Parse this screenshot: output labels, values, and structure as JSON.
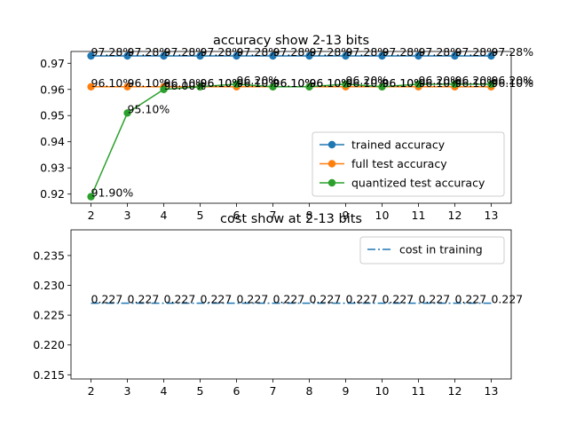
{
  "chart_data": [
    {
      "type": "line",
      "title": "accuracy show 2-13 bits",
      "xlabel": "",
      "ylabel": "",
      "x": [
        2,
        3,
        4,
        5,
        6,
        7,
        8,
        9,
        10,
        11,
        12,
        13
      ],
      "xticks": [
        "2",
        "3",
        "4",
        "5",
        "6",
        "7",
        "8",
        "9",
        "10",
        "11",
        "12",
        "13"
      ],
      "ylim": [
        0.9165,
        0.9745
      ],
      "yticks": [
        0.92,
        0.93,
        0.94,
        0.95,
        0.96,
        0.97
      ],
      "ytick_labels": [
        "0.92",
        "0.93",
        "0.94",
        "0.95",
        "0.96",
        "0.97"
      ],
      "grid": false,
      "legend_position": "lower right",
      "series": [
        {
          "name": "trained accuracy",
          "color": "#1f77b4",
          "marker": "circle",
          "values": [
            0.9728,
            0.9728,
            0.9728,
            0.9728,
            0.9728,
            0.9728,
            0.9728,
            0.9728,
            0.9728,
            0.9728,
            0.9728,
            0.9728
          ],
          "labels": [
            "97.28%",
            "97.28%",
            "97.28%",
            "97.28%",
            "97.28%",
            "97.28%",
            "97.28%",
            "97.28%",
            "97.28%",
            "97.28%",
            "97.28%",
            "97.28%"
          ]
        },
        {
          "name": "full test accuracy",
          "color": "#ff7f0e",
          "marker": "circle",
          "values": [
            0.961,
            0.961,
            0.961,
            0.961,
            0.961,
            0.961,
            0.961,
            0.961,
            0.961,
            0.961,
            0.961,
            0.961
          ],
          "labels": [
            "96.10%",
            "96.10%",
            "96.10%",
            "96.10%",
            "96.10%",
            "96.10%",
            "96.10%",
            "96.10%",
            "96.10%",
            "96.10%",
            "96.10%",
            "96.10%"
          ]
        },
        {
          "name": "quantized test accuracy",
          "color": "#2ca02c",
          "marker": "circle",
          "values": [
            0.919,
            0.951,
            0.96,
            0.961,
            0.962,
            0.961,
            0.961,
            0.962,
            0.961,
            0.962,
            0.962,
            0.962
          ],
          "labels": [
            "91.90%",
            "95.10%",
            "96.00%",
            "96.10%",
            "96.20%",
            "96.10%",
            "96.10%",
            "96.20%",
            "96.10%",
            "96.20%",
            "96.20%",
            "96.20%"
          ]
        }
      ]
    },
    {
      "type": "line",
      "title": "cost show at 2-13 bits",
      "xlabel": "",
      "ylabel": "",
      "x": [
        2,
        3,
        4,
        5,
        6,
        7,
        8,
        9,
        10,
        11,
        12,
        13
      ],
      "xticks": [
        "2",
        "3",
        "4",
        "5",
        "6",
        "7",
        "8",
        "9",
        "10",
        "11",
        "12",
        "13"
      ],
      "ylim": [
        0.2143,
        0.2393
      ],
      "yticks": [
        0.215,
        0.22,
        0.225,
        0.23,
        0.235
      ],
      "ytick_labels": [
        "0.215",
        "0.220",
        "0.225",
        "0.230",
        "0.235"
      ],
      "grid": false,
      "legend_position": "upper right",
      "series": [
        {
          "name": "cost in training",
          "color": "#1f77b4",
          "linestyle": "dash-dot",
          "values": [
            0.227,
            0.227,
            0.227,
            0.227,
            0.227,
            0.227,
            0.227,
            0.227,
            0.227,
            0.227,
            0.227,
            0.227
          ],
          "labels": [
            "0.227",
            "0.227",
            "0.227",
            "0.227",
            "0.227",
            "0.227",
            "0.227",
            "0.227",
            "0.227",
            "0.227",
            "0.227",
            "0.227"
          ]
        }
      ]
    }
  ]
}
